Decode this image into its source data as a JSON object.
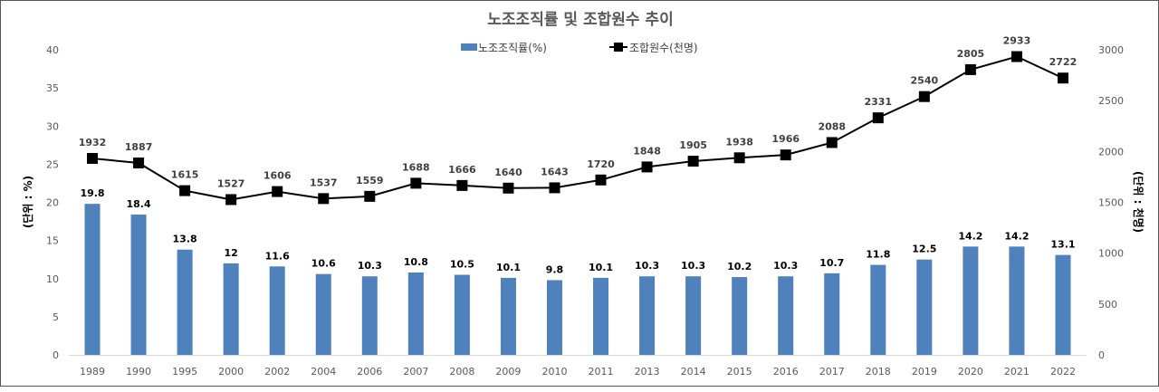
{
  "chart_data": {
    "type": "bar+line",
    "title": "노조조직률 및 조합원수 추이",
    "categories": [
      "1989",
      "1990",
      "1995",
      "2000",
      "2002",
      "2004",
      "2006",
      "2007",
      "2008",
      "2009",
      "2010",
      "2011",
      "2013",
      "2014",
      "2015",
      "2016",
      "2017",
      "2018",
      "2019",
      "2020",
      "2021",
      "2022"
    ],
    "series": [
      {
        "name": "노조조직률(%)",
        "type": "bar",
        "axis": "left",
        "color": "#4f81bd",
        "values": [
          19.8,
          18.4,
          13.8,
          12,
          11.6,
          10.6,
          10.3,
          10.8,
          10.5,
          10.1,
          9.8,
          10.1,
          10.3,
          10.3,
          10.2,
          10.3,
          10.7,
          11.8,
          12.5,
          14.2,
          14.2,
          13.1
        ]
      },
      {
        "name": "조합원수(천명)",
        "type": "line",
        "axis": "right",
        "color": "#000000",
        "values": [
          1932,
          1887,
          1615,
          1527,
          1606,
          1537,
          1559,
          1688,
          1666,
          1640,
          1643,
          1720,
          1848,
          1905,
          1938,
          1966,
          2088,
          2331,
          2540,
          2805,
          2933,
          2722
        ]
      }
    ],
    "ylabel": "(단위 : %)",
    "y2label": "(단위 : 천명)",
    "ylim": [
      0,
      40
    ],
    "yticks": [
      "0",
      "5",
      "10",
      "15",
      "20",
      "25",
      "30",
      "35",
      "40"
    ],
    "y2lim": [
      0,
      3000
    ],
    "y2ticks": [
      "0",
      "500",
      "1000",
      "1500",
      "2000",
      "2500",
      "3000"
    ],
    "legend": "top-center",
    "grid": false
  }
}
